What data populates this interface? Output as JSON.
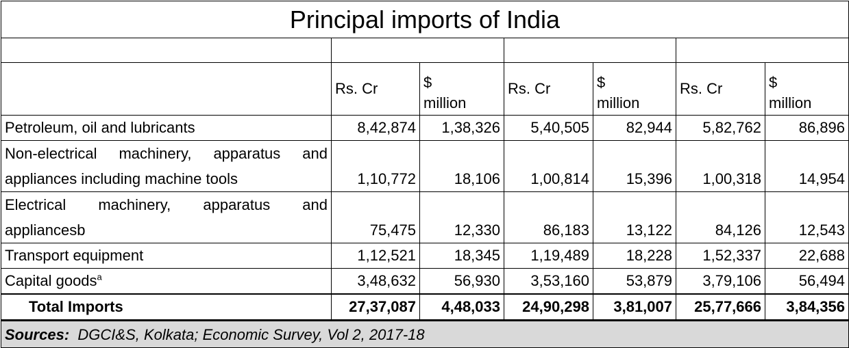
{
  "title": "Principal imports of India",
  "columns": {
    "rs": "Rs. Cr",
    "usd_symbol": "$",
    "usd_unit": "million"
  },
  "rows": [
    {
      "label": "Petroleum, oil and lubricants",
      "values": [
        "8,42,874",
        "1,38,326",
        "5,40,505",
        "82,944",
        "5,82,762",
        "86,896"
      ]
    },
    {
      "label": "Non-electrical machinery, apparatus and appliances including machine tools",
      "values": [
        "1,10,772",
        "18,106",
        "1,00,814",
        "15,396",
        "1,00,318",
        "14,954"
      ]
    },
    {
      "label": "Electrical machinery, apparatus and appliancesb",
      "values": [
        "75,475",
        "12,330",
        "86,183",
        "13,122",
        "84,126",
        "12,543"
      ]
    },
    {
      "label": "Transport equipment",
      "values": [
        "1,12,521",
        "18,345",
        "1,19,489",
        "18,228",
        "1,52,337",
        "22,688"
      ]
    },
    {
      "label": "Capital goods",
      "sup": "a",
      "values": [
        "3,48,632",
        "56,930",
        "3,53,160",
        "53,879",
        "3,79,106",
        "56,494"
      ]
    }
  ],
  "total": {
    "label": "Total Imports",
    "values": [
      "27,37,087",
      "4,48,033",
      "24,90,298",
      "3,81,007",
      "25,77,666",
      "3,84,356"
    ]
  },
  "source": {
    "label": "Sources:",
    "text": "DGCI&S, Kolkata; Economic Survey, Vol 2, 2017-18"
  }
}
